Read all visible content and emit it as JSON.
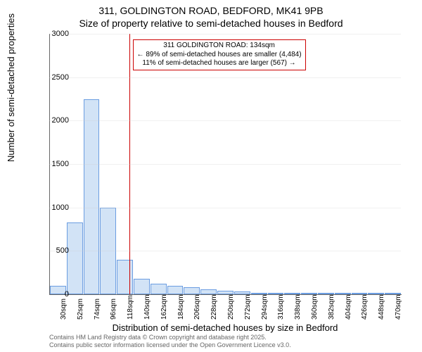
{
  "title_line1": "311, GOLDINGTON ROAD, BEDFORD, MK41 9PB",
  "title_line2": "Size of property relative to semi-detached houses in Bedford",
  "ylabel": "Number of semi-detached properties",
  "xlabel": "Distribution of semi-detached houses by size in Bedford",
  "footer_line1": "Contains HM Land Registry data © Crown copyright and database right 2025.",
  "footer_line2": "Contains public sector information licensed under the Open Government Licence v3.0.",
  "annot_line1": "311 GOLDINGTON ROAD: 134sqm",
  "annot_line2": "← 89% of semi-detached houses are smaller (4,484)",
  "annot_line3": "11% of semi-detached houses are larger (567) →",
  "chart": {
    "type": "histogram",
    "ylim": [
      0,
      3000
    ],
    "ytick_step": 500,
    "x_start": 30,
    "x_step": 22,
    "x_count": 21,
    "x_unit": "sqm",
    "bar_color": "#d2e3f6",
    "bar_border": "#6b9de1",
    "marker_x": 134,
    "marker_color": "#cc0000",
    "grid_color": "#ccc",
    "label_fontsize": 13,
    "tick_fontsize": 11,
    "values": [
      100,
      830,
      2250,
      1000,
      400,
      180,
      120,
      100,
      80,
      60,
      40,
      30,
      20,
      20,
      10,
      0,
      10,
      0,
      0,
      0,
      0
    ]
  }
}
